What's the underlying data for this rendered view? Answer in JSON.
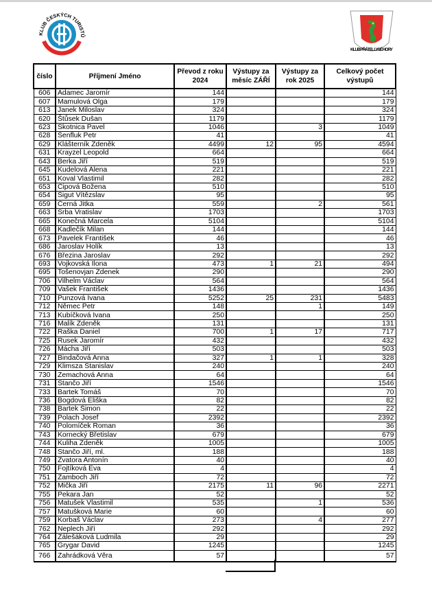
{
  "logos": {
    "left": {
      "text": "KLUB ČESKÝCH TURISTŮ",
      "colors": {
        "blue": "#1b8fc4",
        "red": "#e02828"
      }
    },
    "right": {
      "text": "KLUB PŘÁTEL LYSÉ HORY",
      "colors": {
        "red": "#e0302a",
        "green": "#2f9a3a",
        "yellow": "#f2d21a"
      }
    }
  },
  "table": {
    "headers": [
      "číslo",
      "Příjmení Jméno",
      "Převod z roku 2024",
      "Výstupy za měsíc ZÁŘÍ",
      "Výstupy za rok 2025",
      "Celkový počet výstupů"
    ],
    "rows": [
      [
        "606",
        "Adamec Jaromír",
        "144",
        "",
        "",
        "144"
      ],
      [
        "607",
        "Mamulová Olga",
        "179",
        "",
        "",
        "179"
      ],
      [
        "613",
        "Janek Miloslav",
        "324",
        "",
        "",
        "324"
      ],
      [
        "620",
        "Štůsek Dušan",
        "1179",
        "",
        "",
        "1179"
      ],
      [
        "623",
        "Skotnica Pavel",
        "1046",
        "",
        "3",
        "1049"
      ],
      [
        "628",
        "Šenfluk Petr",
        "41",
        "",
        "",
        "41"
      ],
      [
        "629",
        "Klášterník Zdeněk",
        "4499",
        "12",
        "95",
        "4594"
      ],
      [
        "631",
        "Krayzel Leopold",
        "664",
        "",
        "",
        "664"
      ],
      [
        "643",
        "Berka Jiří",
        "519",
        "",
        "",
        "519"
      ],
      [
        "645",
        "Kudelová Alena",
        "221",
        "",
        "",
        "221"
      ],
      [
        "651",
        "Koval Vlastimil",
        "282",
        "",
        "",
        "282"
      ],
      [
        "653",
        "Čipová Božena",
        "510",
        "",
        "",
        "510"
      ],
      [
        "654",
        "Šigut Vítězslav",
        "95",
        "",
        "",
        "95"
      ],
      [
        "659",
        "Černá Jitka",
        "559",
        "",
        "2",
        "561"
      ],
      [
        "663",
        "Srba Vratislav",
        "1703",
        "",
        "",
        "1703"
      ],
      [
        "665",
        "Konečná Marcela",
        "5104",
        "",
        "",
        "5104"
      ],
      [
        "668",
        "Kadlečík Milan",
        "144",
        "",
        "",
        "144"
      ],
      [
        "673",
        "Pavelek František",
        "46",
        "",
        "",
        "46"
      ],
      [
        "686",
        "Jaroslav Holík",
        "13",
        "",
        "",
        "13"
      ],
      [
        "676",
        "Březina Jaroslav",
        "292",
        "",
        "",
        "292"
      ],
      [
        "693",
        "Vojkovská Ilona",
        "473",
        "1",
        "21",
        "494"
      ],
      [
        "695",
        "Tošenovjan Zdenek",
        "290",
        "",
        "",
        "290"
      ],
      [
        "706",
        "Vilhelm Václav",
        "564",
        "",
        "",
        "564"
      ],
      [
        "709",
        "Vašek František",
        "1436",
        "",
        "",
        "1436"
      ],
      [
        "710",
        "Punzová Ivana",
        "5252",
        "25",
        "231",
        "5483"
      ],
      [
        "712",
        "Němec Petr",
        "148",
        "",
        "1",
        "149"
      ],
      [
        "713",
        "Kubíčková Ivana",
        "250",
        "",
        "",
        "250"
      ],
      [
        "716",
        "Malík Zdeněk",
        "131",
        "",
        "",
        "131"
      ],
      [
        "722",
        "Raška Daniel",
        "700",
        "1",
        "17",
        "717"
      ],
      [
        "725",
        "Rusek Jaromír",
        "432",
        "",
        "",
        "432"
      ],
      [
        "726",
        "Mácha Jiří",
        "503",
        "",
        "",
        "503"
      ],
      [
        "727",
        "Bindačová Anna",
        "327",
        "1",
        "1",
        "328"
      ],
      [
        "729",
        "Klimsza Stanislav",
        "240",
        "",
        "",
        "240"
      ],
      [
        "730",
        "Zemachová Anna",
        "64",
        "",
        "",
        "64"
      ],
      [
        "731",
        "Stančo Jiří",
        "1546",
        "",
        "",
        "1546"
      ],
      [
        "733",
        "Bartek Tomáš",
        "70",
        "",
        "",
        "70"
      ],
      [
        "736",
        "Bogdová Eliška",
        "82",
        "",
        "",
        "82"
      ],
      [
        "738",
        "Bartek Šimon",
        "22",
        "",
        "",
        "22"
      ],
      [
        "739",
        "Polach Josef",
        "2392",
        "",
        "",
        "2392"
      ],
      [
        "740",
        "Polomíček Roman",
        "36",
        "",
        "",
        "36"
      ],
      [
        "743",
        "Kornecký Břetislav",
        "679",
        "",
        "",
        "679"
      ],
      [
        "744",
        "Kuliha Zdeněk",
        "1005",
        "",
        "",
        "1005"
      ],
      [
        "748",
        "Stančo Jiří, ml.",
        "188",
        "",
        "",
        "188"
      ],
      [
        "749",
        "Zvatora Antonín",
        "40",
        "",
        "",
        "40"
      ],
      [
        "750",
        "Fojtíková Eva",
        "4",
        "",
        "",
        "4"
      ],
      [
        "751",
        "Zamboch Jiří",
        "72",
        "",
        "",
        "72"
      ],
      [
        "752",
        "Mička Jiří",
        "2175",
        "11",
        "96",
        "2271"
      ],
      [
        "755",
        "Pekara Jan",
        "52",
        "",
        "",
        "52"
      ],
      [
        "756",
        "Matušek Vlastimil",
        "535",
        "",
        "1",
        "536"
      ],
      [
        "757",
        "Matušková Marie",
        "60",
        "",
        "",
        "60"
      ],
      [
        "759",
        "Korbaš Václav",
        "273",
        "",
        "4",
        "277"
      ],
      [
        "762",
        "Neplech Jiří",
        "292",
        "",
        "",
        "292"
      ],
      [
        "764",
        "Zálešáková Ludmila",
        "29",
        "",
        "",
        "29"
      ],
      [
        "765",
        "Grygar David",
        "1245",
        "",
        "",
        "1245"
      ],
      [
        "766",
        "Zahrádková Věra",
        "57",
        "",
        "",
        "57"
      ]
    ]
  }
}
